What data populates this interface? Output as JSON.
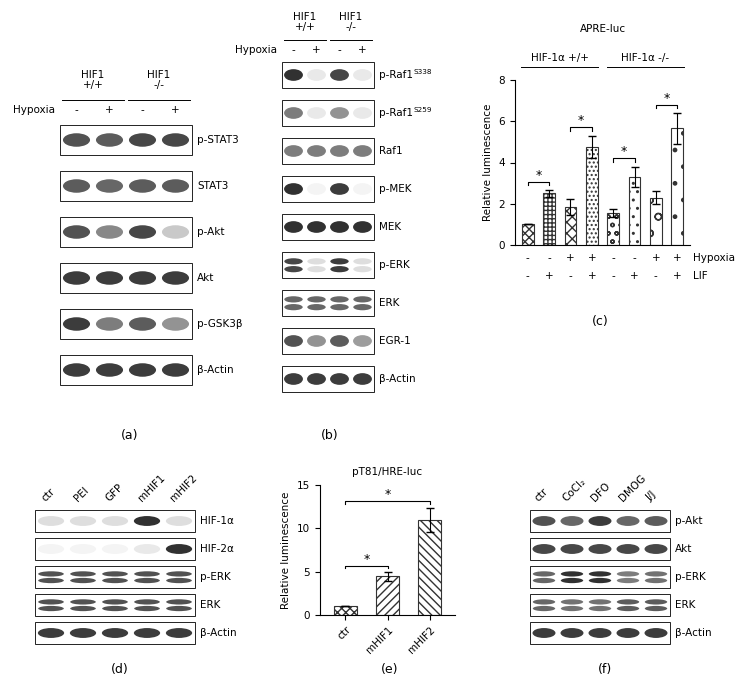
{
  "chart_data": [
    {
      "type": "bar",
      "panel": "(c)",
      "title": "APRE-luc",
      "y_label": "Relative luminescence",
      "categories": [
        null,
        null,
        null,
        null,
        null,
        null,
        null,
        null
      ],
      "values": [
        1.0,
        2.5,
        1.85,
        4.75,
        1.55,
        3.3,
        2.3,
        5.65
      ],
      "errors": [
        0,
        0.15,
        0.4,
        0.55,
        0.2,
        0.5,
        0.3,
        0.75
      ],
      "ylim": [
        0,
        8
      ],
      "yticks": [
        0,
        2,
        4,
        6,
        8
      ],
      "groups": [
        {
          "label": "HIF-1α +/+",
          "from": 0,
          "to": 3
        },
        {
          "label": "HIF-1α -/-",
          "from": 4,
          "to": 7
        }
      ],
      "conditions": [
        {
          "name": "Hypoxia",
          "values": [
            "-",
            "-",
            "+",
            "+",
            "-",
            "-",
            "+",
            "+"
          ]
        },
        {
          "name": "LIF",
          "values": [
            "-",
            "+",
            "-",
            "+",
            "-",
            "+",
            "-",
            "+"
          ]
        }
      ],
      "significance": {
        "label": "*",
        "pairs": [
          [
            0,
            1
          ],
          [
            2,
            3
          ],
          [
            4,
            5
          ],
          [
            6,
            7
          ]
        ]
      }
    },
    {
      "type": "bar",
      "panel": "(e)",
      "title": "pT81/HRE-luc",
      "y_label": "Relative luminescence",
      "categories": [
        "ctr",
        "mHIF1",
        "mHIF2"
      ],
      "values": [
        1.0,
        4.45,
        11.0
      ],
      "errors": [
        0,
        0.5,
        1.4
      ],
      "ylim": [
        0,
        15
      ],
      "yticks": [
        0,
        5,
        10,
        15
      ],
      "significance": {
        "label": "*",
        "pairs": [
          [
            0,
            1
          ],
          [
            0,
            2
          ]
        ]
      }
    }
  ],
  "blots": [
    {
      "panel": "(a)",
      "groups": [
        {
          "label": "HIF1\n+/+",
          "lanes": [
            0,
            1
          ]
        },
        {
          "label": "HIF1\n-/-",
          "lanes": [
            2,
            3
          ]
        }
      ],
      "condition": {
        "name": "Hypoxia",
        "values": [
          "-",
          "+",
          "-",
          "+"
        ]
      },
      "rows": [
        {
          "label": "p-STAT3",
          "intensities": [
            0.8,
            0.75,
            0.85,
            0.85
          ]
        },
        {
          "label": "STAT3",
          "intensities": [
            0.75,
            0.7,
            0.75,
            0.75
          ]
        },
        {
          "label": "p-Akt",
          "intensities": [
            0.8,
            0.55,
            0.85,
            0.25
          ]
        },
        {
          "label": "Akt",
          "intensities": [
            0.9,
            0.9,
            0.9,
            0.9
          ]
        },
        {
          "label": "p-GSK3β",
          "intensities": [
            0.9,
            0.6,
            0.75,
            0.5
          ]
        },
        {
          "label": "β-Actin",
          "intensities": [
            0.9,
            0.9,
            0.9,
            0.9
          ]
        }
      ]
    },
    {
      "panel": "(b)",
      "groups": [
        {
          "label": "HIF1\n+/+",
          "lanes": [
            0,
            1
          ]
        },
        {
          "label": "HIF1\n-/-",
          "lanes": [
            2,
            3
          ]
        }
      ],
      "condition": {
        "name": "Hypoxia",
        "values": [
          "-",
          "+",
          "-",
          "+"
        ]
      },
      "rows": [
        {
          "label": "p-Raf1",
          "superscript": "S338",
          "intensities": [
            0.95,
            0.1,
            0.85,
            0.1
          ]
        },
        {
          "label": "p-Raf1",
          "superscript": "S259",
          "intensities": [
            0.6,
            0.1,
            0.5,
            0.1
          ]
        },
        {
          "label": "Raf1",
          "intensities": [
            0.6,
            0.6,
            0.6,
            0.6
          ]
        },
        {
          "label": "p-MEK",
          "intensities": [
            0.95,
            0.05,
            0.9,
            0.05
          ]
        },
        {
          "label": "MEK",
          "intensities": [
            0.95,
            0.95,
            0.95,
            0.95
          ]
        },
        {
          "label": "p-ERK",
          "doublet": true,
          "intensities": [
            0.85,
            0.15,
            0.9,
            0.15
          ]
        },
        {
          "label": "ERK",
          "doublet": true,
          "intensities": [
            0.7,
            0.7,
            0.7,
            0.7
          ]
        },
        {
          "label": "EGR-1",
          "intensities": [
            0.8,
            0.5,
            0.75,
            0.45
          ]
        },
        {
          "label": "β-Actin",
          "intensities": [
            0.9,
            0.9,
            0.9,
            0.9
          ]
        }
      ]
    },
    {
      "panel": "(d)",
      "lanes": [
        "ctr",
        "PEI",
        "GFP",
        "mHIF1",
        "mHIF2"
      ],
      "rows": [
        {
          "label": "HIF-1α",
          "intensities": [
            0.15,
            0.15,
            0.15,
            0.95,
            0.15
          ]
        },
        {
          "label": "HIF-2α",
          "intensities": [
            0.05,
            0.05,
            0.05,
            0.1,
            0.95
          ]
        },
        {
          "label": "p-ERK",
          "doublet": true,
          "intensities": [
            0.8,
            0.8,
            0.8,
            0.8,
            0.8
          ]
        },
        {
          "label": "ERK",
          "doublet": true,
          "intensities": [
            0.8,
            0.8,
            0.8,
            0.8,
            0.8
          ]
        },
        {
          "label": "β-Actin",
          "intensities": [
            0.9,
            0.9,
            0.9,
            0.9,
            0.9
          ]
        }
      ]
    },
    {
      "panel": "(f)",
      "lanes": [
        "ctr",
        "CoCl₂",
        "DFO",
        "DMOG",
        "J/J"
      ],
      "rows": [
        {
          "label": "p-Akt",
          "intensities": [
            0.8,
            0.7,
            0.9,
            0.7,
            0.75
          ]
        },
        {
          "label": "Akt",
          "intensities": [
            0.85,
            0.85,
            0.85,
            0.85,
            0.85
          ]
        },
        {
          "label": "p-ERK",
          "doublet": true,
          "intensities": [
            0.7,
            0.95,
            0.95,
            0.6,
            0.65
          ]
        },
        {
          "label": "ERK",
          "doublet": true,
          "intensities": [
            0.7,
            0.65,
            0.65,
            0.75,
            0.75
          ]
        },
        {
          "label": "β-Actin",
          "intensities": [
            0.9,
            0.9,
            0.9,
            0.9,
            0.9
          ]
        }
      ]
    }
  ]
}
